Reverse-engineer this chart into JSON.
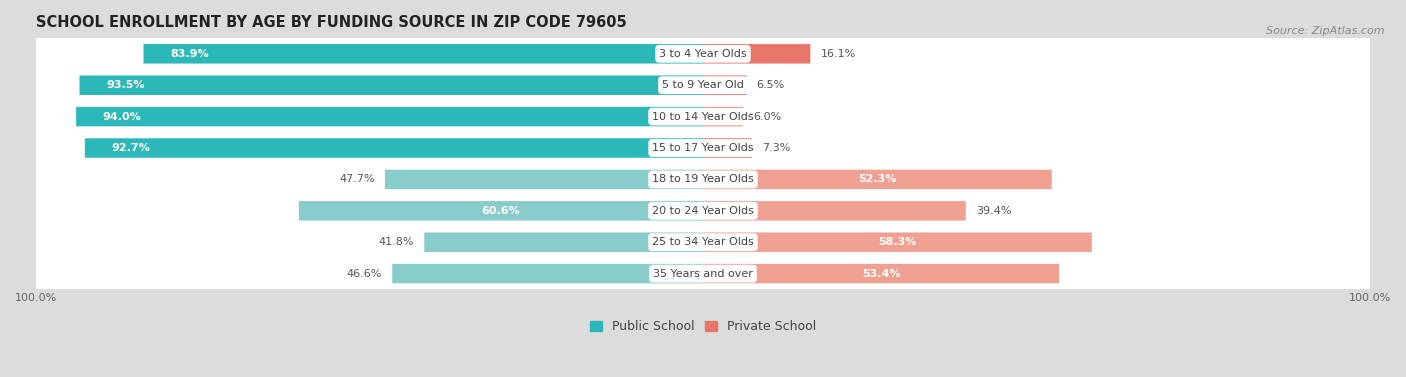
{
  "title": "SCHOOL ENROLLMENT BY AGE BY FUNDING SOURCE IN ZIP CODE 79605",
  "source": "Source: ZipAtlas.com",
  "categories": [
    "3 to 4 Year Olds",
    "5 to 9 Year Old",
    "10 to 14 Year Olds",
    "15 to 17 Year Olds",
    "18 to 19 Year Olds",
    "20 to 24 Year Olds",
    "25 to 34 Year Olds",
    "35 Years and over"
  ],
  "public_values": [
    83.9,
    93.5,
    94.0,
    92.7,
    47.7,
    60.6,
    41.8,
    46.6
  ],
  "private_values": [
    16.1,
    6.5,
    6.0,
    7.3,
    52.3,
    39.4,
    58.3,
    53.4
  ],
  "public_color_dark": "#2cb8b8",
  "public_color_light": "#88cccc",
  "private_color_dark": "#e8756a",
  "private_color_light": "#f0a090",
  "bg_outer": "#dcdcdc",
  "bg_row": "#f5f5f5",
  "label_fontsize": 8.0,
  "title_fontsize": 10.5,
  "source_fontsize": 8.0,
  "legend_fontsize": 9.0,
  "value_fontsize": 8.0
}
